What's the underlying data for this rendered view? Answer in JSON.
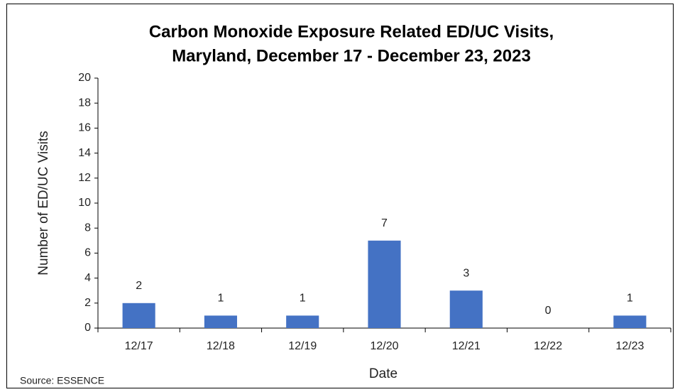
{
  "chart_data": {
    "type": "bar",
    "title": [
      "Carbon Monoxide Exposure Related ED/UC Visits,",
      "Maryland, December 17 - December 23, 2023"
    ],
    "x_label": "Date",
    "y_label": "Number of ED/UC Visits",
    "source": "Source: ESSENCE",
    "categories": [
      "12/17",
      "12/18",
      "12/19",
      "12/20",
      "12/21",
      "12/22",
      "12/23"
    ],
    "values": [
      2,
      1,
      1,
      7,
      3,
      0,
      1
    ],
    "color": "#4472c4",
    "ylim": [
      0,
      20
    ],
    "yticks": [
      0,
      2,
      4,
      6,
      8,
      10,
      12,
      14,
      16,
      18,
      20
    ],
    "grid": false
  }
}
